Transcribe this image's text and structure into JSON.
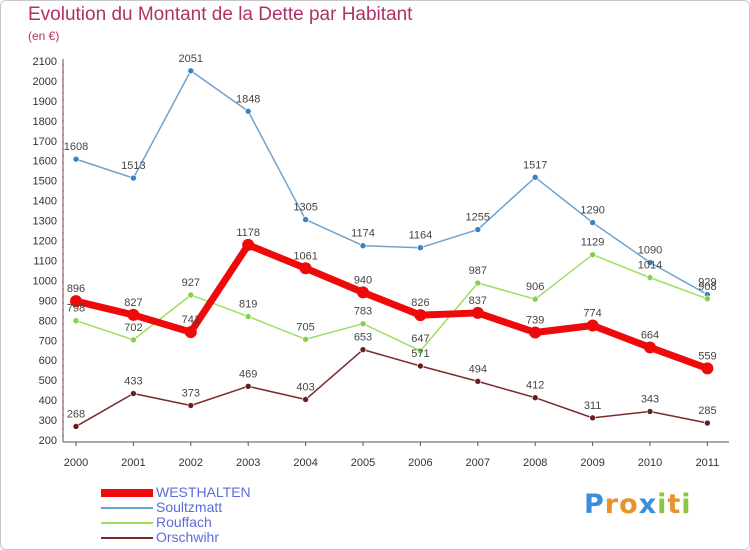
{
  "chart_data": {
    "type": "line",
    "title": "Evolution du Montant de la Dette par Habitant",
    "subtitle": "(en €)",
    "categories": [
      "2000",
      "2001",
      "2002",
      "2003",
      "2004",
      "2005",
      "2006",
      "2007",
      "2008",
      "2009",
      "2010",
      "2011"
    ],
    "ylim": [
      200,
      2100
    ],
    "yticks": [
      200,
      300,
      400,
      500,
      600,
      700,
      800,
      900,
      1000,
      1100,
      1200,
      1300,
      1400,
      1500,
      1600,
      1700,
      1800,
      1900,
      2000,
      2100
    ],
    "grid": false,
    "legend_position": "bottom-left",
    "series": [
      {
        "name": "Soultzmatt",
        "color": "#6fa3d0",
        "marker": "#3a82c4",
        "values": [
          1608,
          1513,
          2051,
          1848,
          1305,
          1174,
          1164,
          1255,
          1517,
          1290,
          1090,
          929
        ],
        "labels": [
          "1608",
          "1513",
          "2051",
          "1848",
          "1305",
          "1174",
          "1164",
          "1255",
          "1517",
          "1290",
          "1090",
          "929"
        ]
      },
      {
        "name": "Rouffach",
        "color": "#9be060",
        "marker": "#86d048",
        "values": [
          798,
          702,
          927,
          819,
          705,
          783,
          647,
          987,
          906,
          1129,
          1014,
          908
        ],
        "labels": [
          "798",
          "702",
          "927",
          "819",
          "705",
          "783",
          "647",
          "987",
          "906",
          "1129",
          "1014",
          "908"
        ]
      },
      {
        "name": "Orschwihr",
        "color": "#7a2a2a",
        "marker": "#6a1f1f",
        "values": [
          268,
          433,
          373,
          469,
          403,
          653,
          571,
          494,
          412,
          311,
          343,
          285
        ],
        "labels": [
          "268",
          "433",
          "373",
          "469",
          "403",
          "653",
          "571",
          "494",
          "412",
          "311",
          "343",
          "285"
        ]
      },
      {
        "name": "WESTHALTEN",
        "color": "#ee0a0a",
        "marker": "#ee0a0a",
        "values": [
          896,
          827,
          741,
          1178,
          1061,
          940,
          826,
          837,
          739,
          774,
          664,
          559
        ],
        "labels": [
          "896",
          "827",
          "741",
          "1178",
          "1061",
          "940",
          "826",
          "837",
          "739",
          "774",
          "664",
          "559"
        ]
      }
    ],
    "legend_order": [
      "WESTHALTEN",
      "Soultzmatt",
      "Rouffach",
      "Orschwihr"
    ]
  },
  "logo": {
    "text": "Proxiti"
  }
}
